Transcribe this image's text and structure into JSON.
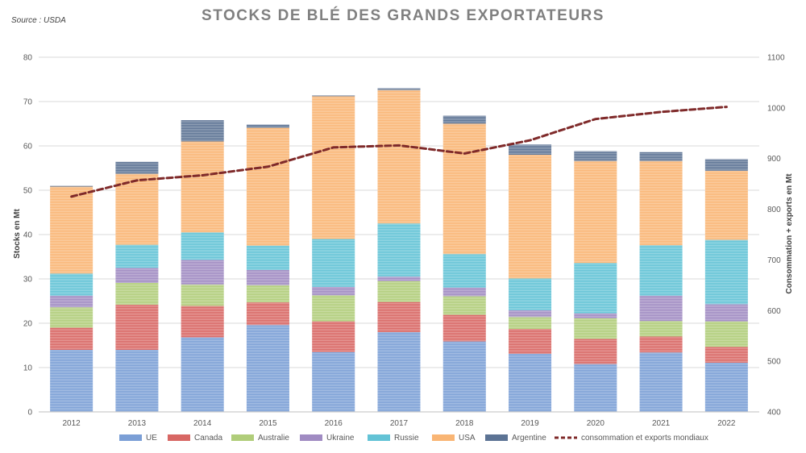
{
  "source": "Source : USDA",
  "chart_data": {
    "type": "bar",
    "stacked": true,
    "title": "STOCKS DE BLÉ DES GRANDS EXPORTATEURS",
    "ylabel": "Stocks en Mt",
    "y2label": "Consommation + exports en Mt",
    "ylim": [
      0,
      80
    ],
    "yticks": [
      0,
      10,
      20,
      30,
      40,
      50,
      60,
      70,
      80
    ],
    "y2lim": [
      400,
      1100
    ],
    "y2ticks": [
      400,
      500,
      600,
      700,
      800,
      900,
      1000,
      1100
    ],
    "grid": true,
    "legend": "bottom",
    "categories": [
      "2012",
      "2013",
      "2014",
      "2015",
      "2016",
      "2017",
      "2018",
      "2019",
      "2020",
      "2021",
      "2022"
    ],
    "series": [
      {
        "name": "UE",
        "color": "#7b9fd6",
        "values": [
          14.0,
          14.0,
          16.8,
          19.6,
          13.5,
          18.0,
          15.9,
          13.1,
          10.8,
          13.4,
          11.1
        ]
      },
      {
        "name": "Canada",
        "color": "#d86764",
        "values": [
          5.0,
          10.2,
          7.1,
          5.1,
          6.9,
          6.8,
          6.0,
          5.6,
          5.7,
          3.6,
          3.6
        ]
      },
      {
        "name": "Australie",
        "color": "#b0cd7a",
        "values": [
          4.6,
          4.9,
          4.8,
          3.9,
          5.9,
          4.7,
          4.2,
          2.7,
          4.6,
          3.5,
          5.7
        ]
      },
      {
        "name": "Ukraine",
        "color": "#a08bc2",
        "values": [
          2.6,
          3.4,
          5.6,
          3.4,
          1.9,
          1.0,
          1.9,
          1.5,
          1.1,
          5.7,
          3.9
        ]
      },
      {
        "name": "Russie",
        "color": "#63c3d6",
        "values": [
          5.0,
          5.2,
          6.2,
          5.5,
          10.8,
          12.0,
          7.6,
          7.2,
          11.4,
          11.4,
          14.5
        ]
      },
      {
        "name": "USA",
        "color": "#f9b574",
        "values": [
          19.6,
          16.0,
          20.5,
          26.6,
          32.2,
          30.1,
          29.4,
          27.9,
          23.0,
          19.0,
          15.6
        ]
      },
      {
        "name": "Argentine",
        "color": "#5c7394",
        "values": [
          0.2,
          2.7,
          4.8,
          0.7,
          0.2,
          0.4,
          1.8,
          2.3,
          2.2,
          2.0,
          2.6
        ]
      }
    ],
    "line": {
      "name": "consommation et exports mondiaux",
      "color": "#7f2a2a",
      "axis": "secondary",
      "values": [
        825,
        857,
        867,
        884,
        922,
        926,
        910,
        936,
        978,
        992,
        1002
      ]
    }
  }
}
